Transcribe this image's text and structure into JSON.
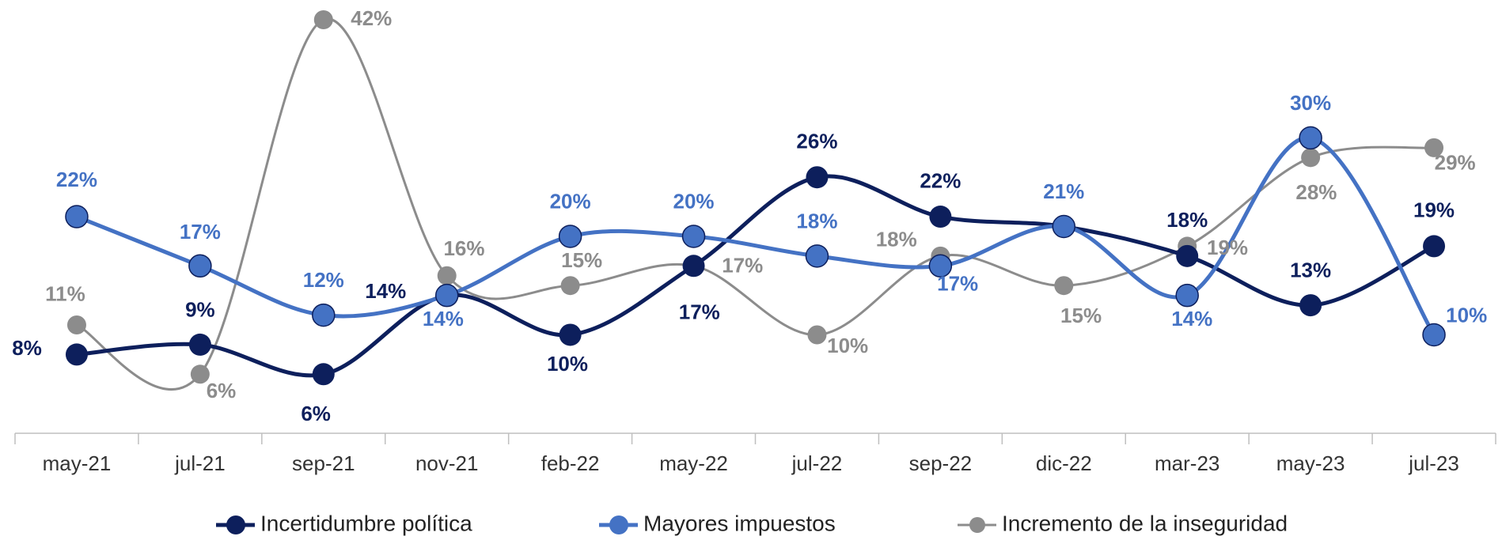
{
  "chart_data": {
    "type": "line",
    "categories": [
      "may-21",
      "jul-21",
      "sep-21",
      "nov-21",
      "feb-22",
      "may-22",
      "jul-22",
      "sep-22",
      "dic-22",
      "mar-23",
      "may-23",
      "jul-23"
    ],
    "series": [
      {
        "name": "Incertidumbre política",
        "color": "#0d1f5c",
        "values": [
          8,
          9,
          6,
          14,
          10,
          17,
          26,
          22,
          21,
          18,
          13,
          19
        ],
        "value_labels": [
          "8%",
          "9%",
          "6%",
          "14%",
          "10%",
          "17%",
          "26%",
          "22%",
          null,
          "18%",
          "13%",
          "19%"
        ]
      },
      {
        "name": "Mayores impuestos",
        "color": "#4472c4",
        "values": [
          22,
          17,
          12,
          14,
          20,
          20,
          18,
          17,
          21,
          14,
          30,
          10
        ],
        "value_labels": [
          "22%",
          "17%",
          "12%",
          "14%",
          "20%",
          "20%",
          "18%",
          "17%",
          "21%",
          "14%",
          "30%",
          "10%"
        ]
      },
      {
        "name": "Incremento de la inseguridad",
        "color": "#8c8c8c",
        "values": [
          11,
          6,
          42,
          16,
          15,
          17,
          10,
          18,
          15,
          19,
          28,
          29
        ],
        "value_labels": [
          "11%",
          "6%",
          "42%",
          "16%",
          "15%",
          "17%",
          "10%",
          "18%",
          "15%",
          "19%",
          "28%",
          "29%"
        ]
      }
    ],
    "legend": "bottom"
  }
}
